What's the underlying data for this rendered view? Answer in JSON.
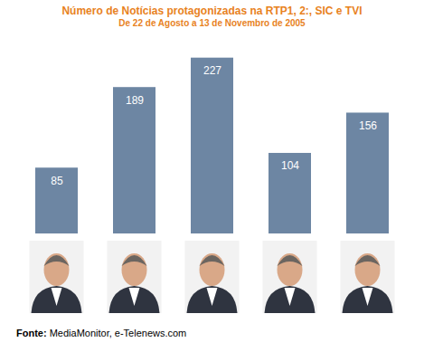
{
  "chart_data": {
    "type": "bar",
    "title": "Número de Notícias protagonizadas na RTP1, 2:, SIC e TVI",
    "subtitle": "De 22 de Agosto a 13 de Novembro de 2005",
    "caption": "Fonte: MediaMonitor, e-Telenews.com",
    "categories": [
      null,
      null,
      null,
      null,
      null
    ],
    "values": [
      85,
      189,
      227,
      104,
      156
    ],
    "color": "#6d86a3",
    "ylim": [
      0,
      250
    ],
    "yticks": [],
    "grid": false,
    "data_labels": true,
    "tick_labels": false
  }
}
